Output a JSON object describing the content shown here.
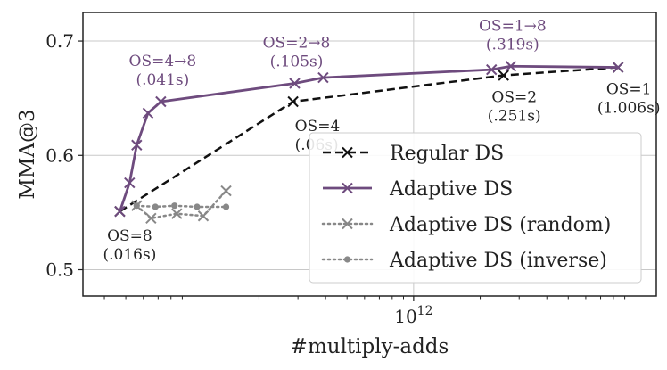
{
  "chart_data": {
    "type": "line",
    "xlabel": "#multiply-adds",
    "ylabel": "MMA@3",
    "x_scale": "log",
    "xlim": [
      32000000000.0,
      12500000000000.0
    ],
    "ylim": [
      0.477,
      0.725
    ],
    "x_tick_labels": [
      {
        "value": 1000000000000.0,
        "label": "10^12",
        "base": "10",
        "exp": "12"
      }
    ],
    "y_ticks": [
      0.5,
      0.6,
      0.7
    ],
    "y_tick_labels": [
      "0.5",
      "0.6",
      "0.7"
    ],
    "grid": true,
    "legend_position": "lower-right",
    "colors": {
      "regular": "#111111",
      "adaptive": "#6e4b7e",
      "random": "#888888",
      "inverse": "#888888",
      "frame": "#222222",
      "grid": "#c8c8c8"
    },
    "series": [
      {
        "name": "Regular DS",
        "style": "dashed",
        "marker": "x",
        "color": "#111111",
        "x": [
          47000000000.0,
          285000000000.0,
          2550000000000.0,
          8400000000000.0
        ],
        "y": [
          0.551,
          0.647,
          0.67,
          0.677
        ]
      },
      {
        "name": "Adaptive DS",
        "style": "solid",
        "marker": "x",
        "color": "#6e4b7e",
        "x": [
          47000000000.0,
          52000000000.0,
          56000000000.0,
          63000000000.0,
          72000000000.0,
          290000000000.0,
          390000000000.0,
          2250000000000.0,
          2750000000000.0,
          8400000000000.0
        ],
        "y": [
          0.551,
          0.576,
          0.609,
          0.637,
          0.647,
          0.663,
          0.668,
          0.675,
          0.678,
          0.677
        ]
      },
      {
        "name": "Adaptive DS (random)",
        "style": "dotted",
        "marker": "x",
        "color": "#888888",
        "x": [
          56000000000.0,
          65000000000.0,
          85000000000.0,
          112000000000.0,
          142000000000.0
        ],
        "y": [
          0.556,
          0.545,
          0.549,
          0.547,
          0.569
        ]
      },
      {
        "name": "Adaptive DS (inverse)",
        "style": "dotted",
        "marker": "dot",
        "color": "#888888",
        "x": [
          56000000000.0,
          68000000000.0,
          83000000000.0,
          105000000000.0,
          142000000000.0
        ],
        "y": [
          0.556,
          0.555,
          0.556,
          0.555,
          0.555
        ]
      }
    ],
    "annotations": [
      {
        "lines": [
          "OS=8",
          "(.016s)"
        ],
        "color": "#222222",
        "x": 47000000000.0,
        "y": 0.551,
        "anchor": "below"
      },
      {
        "lines": [
          "OS=4",
          "(.06s)"
        ],
        "color": "#222222",
        "x": 285000000000.0,
        "y": 0.647,
        "anchor": "below-right"
      },
      {
        "lines": [
          "OS=2",
          "(.251s)"
        ],
        "color": "#222222",
        "x": 2550000000000.0,
        "y": 0.67,
        "anchor": "below"
      },
      {
        "lines": [
          "OS=1",
          "(1.006s)"
        ],
        "color": "#222222",
        "x": 8400000000000.0,
        "y": 0.677,
        "anchor": "below"
      },
      {
        "lines": [
          "OS=4→8",
          "(.041s)"
        ],
        "color": "#6e4b7e",
        "x": 72000000000.0,
        "y": 0.647,
        "anchor": "above"
      },
      {
        "lines": [
          "OS=2→8",
          "(.105s)"
        ],
        "color": "#6e4b7e",
        "x": 290000000000.0,
        "y": 0.663,
        "anchor": "above"
      },
      {
        "lines": [
          "OS=1→8",
          "(.319s)"
        ],
        "color": "#6e4b7e",
        "x": 2750000000000.0,
        "y": 0.678,
        "anchor": "above"
      }
    ]
  }
}
